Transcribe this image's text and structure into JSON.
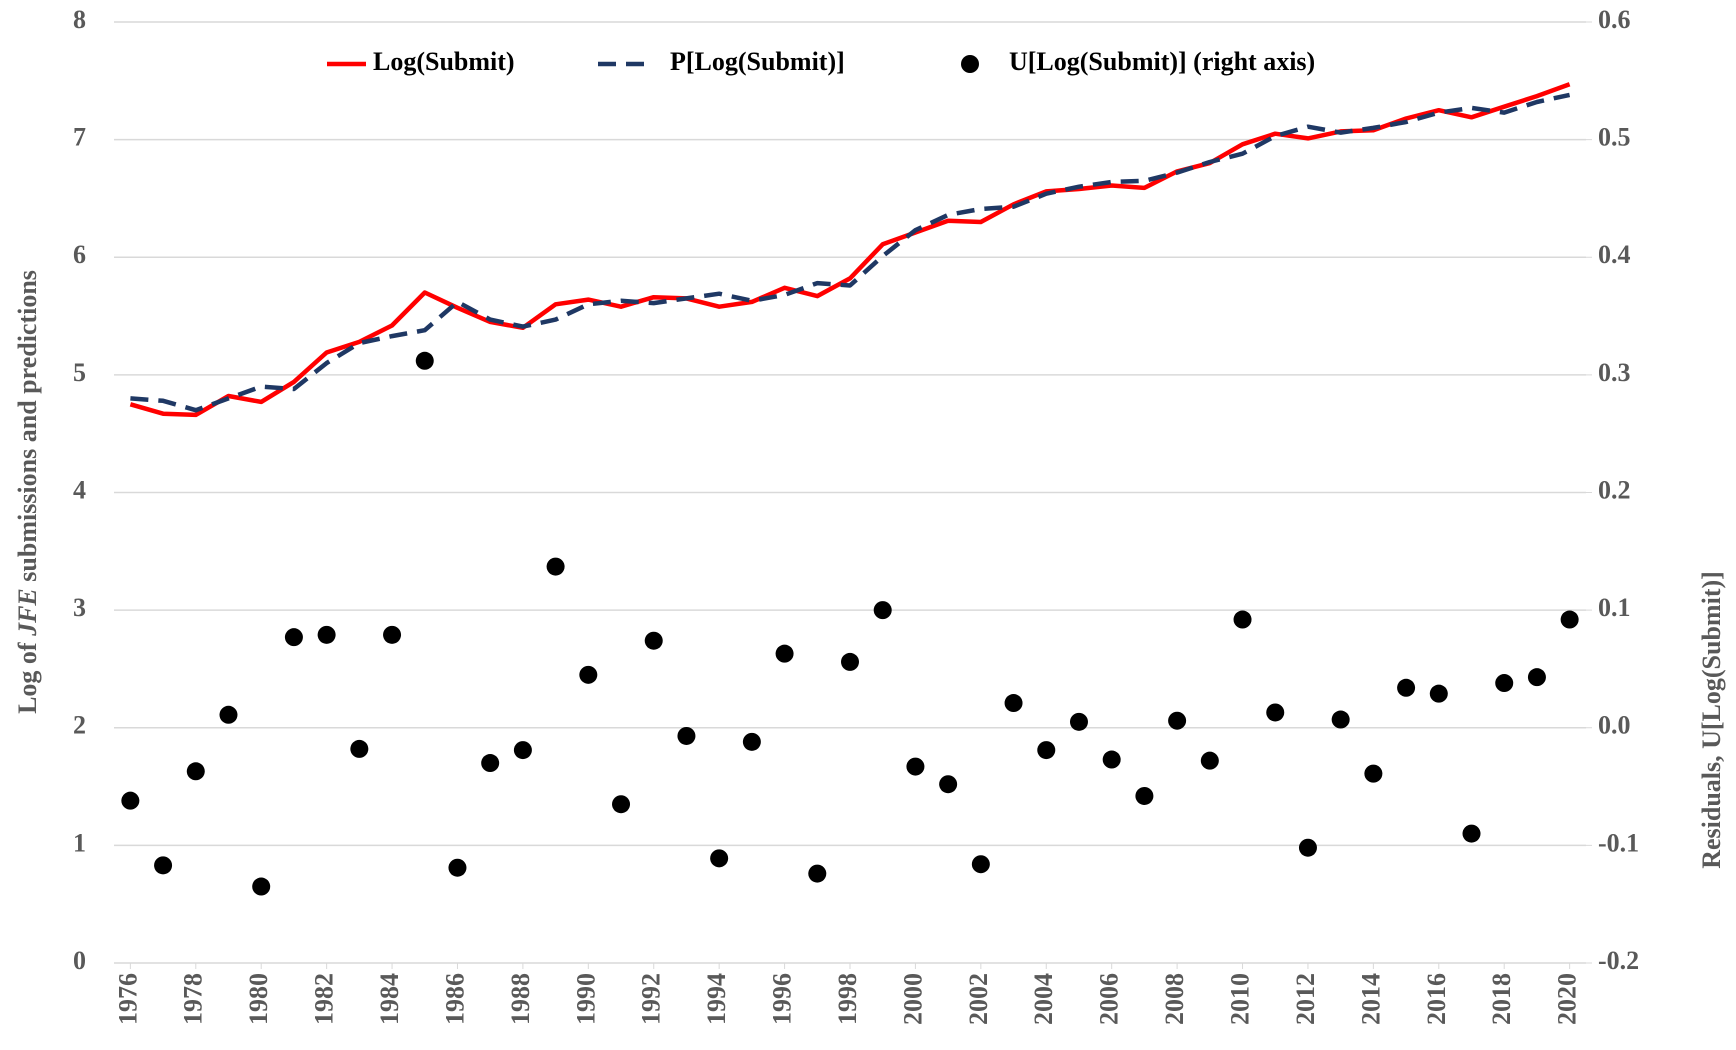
{
  "chart_data": {
    "type": "line",
    "ylabel": [
      "Log of ",
      "JFE",
      " submissions and predictions"
    ],
    "y2label": "Residuals, U[Log(Submit)]",
    "x": [
      1976,
      1977,
      1978,
      1979,
      1980,
      1981,
      1982,
      1983,
      1984,
      1985,
      1986,
      1987,
      1988,
      1989,
      1990,
      1991,
      1992,
      1993,
      1994,
      1995,
      1996,
      1997,
      1998,
      1999,
      2000,
      2001,
      2002,
      2003,
      2004,
      2005,
      2006,
      2007,
      2008,
      2009,
      2010,
      2011,
      2012,
      2013,
      2014,
      2015,
      2016,
      2017,
      2018,
      2019,
      2020
    ],
    "xlim": [
      1975.5,
      2020.5
    ],
    "xticks": [
      1976,
      1978,
      1980,
      1982,
      1984,
      1986,
      1988,
      1990,
      1992,
      1994,
      1996,
      1998,
      2000,
      2002,
      2004,
      2006,
      2008,
      2010,
      2012,
      2014,
      2016,
      2018,
      2020
    ],
    "ylim": [
      0,
      8
    ],
    "yticks": [
      0,
      1,
      2,
      3,
      4,
      5,
      6,
      7,
      8
    ],
    "y2lim": [
      -0.2,
      0.6
    ],
    "y2ticks": [
      -0.2,
      -0.1,
      {
        "value": 0,
        "label": "0.0"
      },
      0.1,
      0.2,
      0.3,
      0.4,
      0.5,
      0.6
    ],
    "grid": true,
    "legend": "top",
    "series": [
      {
        "name": "Log(Submit)",
        "color": "#ff0000",
        "style": "solid",
        "values": [
          4.75,
          4.67,
          4.66,
          4.82,
          4.77,
          4.94,
          5.19,
          5.28,
          5.42,
          5.7,
          5.57,
          5.45,
          5.4,
          5.6,
          5.64,
          5.58,
          5.66,
          5.65,
          5.58,
          5.62,
          5.74,
          5.67,
          5.82,
          6.11,
          6.21,
          6.31,
          6.3,
          6.45,
          6.56,
          6.58,
          6.61,
          6.59,
          6.73,
          6.8,
          6.96,
          7.05,
          7.01,
          7.07,
          7.08,
          7.18,
          7.25,
          7.19,
          7.28,
          7.37,
          7.47
        ]
      },
      {
        "name": "P[Log(Submit)]",
        "color": "#1f3864",
        "style": "dashed",
        "values": [
          4.8,
          4.78,
          4.7,
          4.8,
          4.9,
          4.88,
          5.1,
          5.27,
          5.33,
          5.38,
          5.62,
          5.47,
          5.41,
          5.47,
          5.6,
          5.63,
          5.61,
          5.65,
          5.69,
          5.63,
          5.68,
          5.78,
          5.76,
          6.01,
          6.23,
          6.36,
          6.41,
          6.43,
          6.54,
          6.6,
          6.64,
          6.65,
          6.72,
          6.81,
          6.88,
          7.03,
          7.11,
          7.06,
          7.1,
          7.15,
          7.23,
          7.27,
          7.23,
          7.32,
          7.38
        ]
      },
      {
        "name": "U[Log(Submit)] (right axis)",
        "color": "#000000",
        "style": "markers",
        "axis": "y2",
        "values": [
          -0.062,
          -0.117,
          -0.037,
          0.011,
          -0.135,
          0.077,
          0.079,
          -0.018,
          0.079,
          0.312,
          -0.119,
          -0.03,
          -0.019,
          0.137,
          0.045,
          -0.065,
          0.074,
          -0.007,
          -0.111,
          -0.012,
          0.063,
          -0.124,
          0.056,
          0.1,
          -0.033,
          -0.048,
          -0.116,
          0.021,
          -0.019,
          0.005,
          -0.027,
          -0.058,
          0.006,
          -0.028,
          0.092,
          0.013,
          -0.102,
          0.007,
          -0.039,
          0.034,
          0.029,
          -0.09,
          0.038,
          0.043,
          0.092
        ]
      }
    ]
  }
}
